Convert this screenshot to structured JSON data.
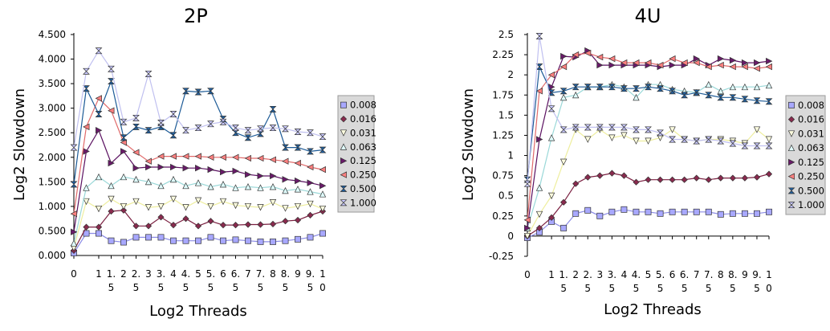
{
  "chart_data": [
    {
      "type": "line",
      "title": "2P",
      "xlabel": "Log2 Threads",
      "ylabel": "Log2 Slowdown",
      "x_ticks": [
        [
          "0"
        ],
        [
          "1"
        ],
        [
          "1.",
          "5"
        ],
        [
          "2"
        ],
        [
          "2.",
          "5"
        ],
        [
          "3"
        ],
        [
          "3.",
          "5"
        ],
        [
          "4"
        ],
        [
          "4.",
          "5"
        ],
        [
          "5"
        ],
        [
          "5.",
          "5"
        ],
        [
          "6"
        ],
        [
          "6.",
          "5"
        ],
        [
          "7"
        ],
        [
          "7.",
          "5"
        ],
        [
          "8"
        ],
        [
          "8.",
          "5"
        ],
        [
          "9"
        ],
        [
          "9.",
          "5"
        ],
        [
          "1",
          "0"
        ]
      ],
      "x": [
        0,
        0.5,
        1,
        1.5,
        2,
        2.5,
        3,
        3.5,
        4,
        4.5,
        5,
        5.5,
        6,
        6.5,
        7,
        7.5,
        8,
        8.5,
        9,
        9.5,
        10
      ],
      "y_ticks": [
        "0.000",
        "0.500",
        "1.000",
        "1.500",
        "2.000",
        "2.500",
        "3.000",
        "3.500",
        "4.000",
        "4.500"
      ],
      "ylim": [
        0,
        4.5
      ],
      "grid": false,
      "legend_position": "right",
      "series": [
        {
          "name": "0.008",
          "values": [
            0.05,
            0.45,
            0.45,
            0.3,
            0.27,
            0.37,
            0.37,
            0.37,
            0.3,
            0.3,
            0.3,
            0.37,
            0.3,
            0.32,
            0.3,
            0.28,
            0.28,
            0.3,
            0.33,
            0.37,
            0.45
          ]
        },
        {
          "name": "0.016",
          "values": [
            0.1,
            0.58,
            0.58,
            0.9,
            0.92,
            0.6,
            0.6,
            0.78,
            0.62,
            0.75,
            0.6,
            0.7,
            0.62,
            0.62,
            0.63,
            0.63,
            0.64,
            0.7,
            0.72,
            0.82,
            0.9
          ]
        },
        {
          "name": "0.031",
          "values": [
            0.15,
            1.1,
            0.95,
            1.15,
            1.0,
            1.1,
            0.98,
            1.0,
            1.15,
            0.98,
            1.12,
            1.0,
            1.1,
            1.02,
            1.0,
            0.98,
            1.08,
            0.96,
            1.0,
            1.05,
            0.95
          ]
        },
        {
          "name": "0.063",
          "values": [
            0.25,
            1.38,
            1.6,
            1.42,
            1.6,
            1.55,
            1.5,
            1.42,
            1.55,
            1.42,
            1.48,
            1.4,
            1.45,
            1.38,
            1.4,
            1.38,
            1.4,
            1.32,
            1.35,
            1.3,
            1.25
          ]
        },
        {
          "name": "0.125",
          "values": [
            0.48,
            2.12,
            2.55,
            1.88,
            2.12,
            1.78,
            1.8,
            1.8,
            1.8,
            1.78,
            1.78,
            1.75,
            1.7,
            1.72,
            1.65,
            1.62,
            1.62,
            1.55,
            1.52,
            1.48,
            1.42
          ]
        },
        {
          "name": "0.250",
          "values": [
            0.85,
            2.62,
            3.2,
            2.95,
            2.3,
            2.1,
            1.92,
            2.02,
            2.02,
            2.02,
            2.02,
            2.0,
            2.0,
            2.0,
            1.98,
            1.98,
            1.95,
            1.92,
            1.88,
            1.8,
            1.75
          ]
        },
        {
          "name": "0.500",
          "values": [
            1.45,
            3.4,
            2.88,
            3.55,
            2.4,
            2.62,
            2.55,
            2.62,
            2.45,
            3.35,
            3.33,
            3.35,
            2.78,
            2.5,
            2.4,
            2.48,
            2.98,
            2.2,
            2.2,
            2.12,
            2.15
          ]
        },
        {
          "name": "1.000",
          "values": [
            2.2,
            3.75,
            4.17,
            3.8,
            2.72,
            2.8,
            3.7,
            2.7,
            2.88,
            2.55,
            2.6,
            2.68,
            2.72,
            2.6,
            2.55,
            2.58,
            2.6,
            2.58,
            2.52,
            2.5,
            2.42
          ]
        }
      ]
    },
    {
      "type": "line",
      "title": "4U",
      "xlabel": "Log2 Threads",
      "ylabel": "Log2 Slowdown",
      "x_ticks": [
        [
          "0"
        ],
        [
          "1"
        ],
        [
          "1.",
          "5"
        ],
        [
          "2"
        ],
        [
          "2.",
          "5"
        ],
        [
          "3"
        ],
        [
          "3.",
          "5"
        ],
        [
          "4"
        ],
        [
          "4.",
          "5"
        ],
        [
          "5"
        ],
        [
          "5.",
          "5"
        ],
        [
          "6"
        ],
        [
          "6.",
          "5"
        ],
        [
          "7"
        ],
        [
          "7.",
          "5"
        ],
        [
          "8"
        ],
        [
          "8.",
          "5"
        ],
        [
          "9"
        ],
        [
          "9.",
          "5"
        ],
        [
          "1",
          "0"
        ]
      ],
      "x": [
        0,
        0.5,
        1,
        1.5,
        2,
        2.5,
        3,
        3.5,
        4,
        4.5,
        5,
        5.5,
        6,
        6.5,
        7,
        7.5,
        8,
        8.5,
        9,
        9.5,
        10
      ],
      "y_ticks": [
        "-0.25",
        "0",
        "0.25",
        "0.5",
        "0.75",
        "1",
        "1.25",
        "1.5",
        "1.75",
        "2",
        "2.25",
        "2.5"
      ],
      "ylim": [
        -0.25,
        2.5
      ],
      "grid": false,
      "legend_position": "right",
      "series": [
        {
          "name": "0.008",
          "values": [
            -0.02,
            0.05,
            0.18,
            0.1,
            0.28,
            0.32,
            0.25,
            0.3,
            0.33,
            0.3,
            0.3,
            0.28,
            0.3,
            0.3,
            0.3,
            0.3,
            0.27,
            0.28,
            0.28,
            0.28,
            0.3
          ]
        },
        {
          "name": "0.016",
          "values": [
            0.0,
            0.1,
            0.23,
            0.42,
            0.65,
            0.73,
            0.75,
            0.78,
            0.75,
            0.67,
            0.7,
            0.7,
            0.7,
            0.7,
            0.72,
            0.7,
            0.72,
            0.72,
            0.72,
            0.73,
            0.77
          ]
        },
        {
          "name": "0.031",
          "values": [
            0.0,
            0.27,
            0.5,
            0.92,
            1.32,
            1.2,
            1.32,
            1.22,
            1.25,
            1.18,
            1.18,
            1.22,
            1.32,
            1.2,
            1.18,
            1.2,
            1.2,
            1.18,
            1.15,
            1.32,
            1.2
          ]
        },
        {
          "name": "0.063",
          "values": [
            0.1,
            0.6,
            1.22,
            1.72,
            1.75,
            1.85,
            1.85,
            1.88,
            1.85,
            1.72,
            1.88,
            1.88,
            1.82,
            1.8,
            1.78,
            1.88,
            1.8,
            1.85,
            1.85,
            1.85,
            1.87
          ]
        },
        {
          "name": "0.125",
          "values": [
            0.1,
            1.2,
            1.85,
            2.23,
            2.22,
            2.3,
            2.12,
            2.12,
            2.12,
            2.12,
            2.12,
            2.1,
            2.12,
            2.12,
            2.2,
            2.12,
            2.2,
            2.18,
            2.15,
            2.15,
            2.17
          ]
        },
        {
          "name": "0.250",
          "values": [
            0.2,
            1.8,
            2.0,
            2.1,
            2.25,
            2.27,
            2.22,
            2.2,
            2.15,
            2.15,
            2.15,
            2.12,
            2.2,
            2.15,
            2.15,
            2.1,
            2.12,
            2.1,
            2.1,
            2.08,
            2.1
          ]
        },
        {
          "name": "0.500",
          "values": [
            0.7,
            2.1,
            1.78,
            1.8,
            1.85,
            1.85,
            1.85,
            1.85,
            1.83,
            1.83,
            1.85,
            1.83,
            1.8,
            1.75,
            1.78,
            1.75,
            1.72,
            1.72,
            1.7,
            1.68,
            1.67
          ]
        },
        {
          "name": "1.000",
          "values": [
            0.65,
            2.48,
            1.58,
            1.32,
            1.35,
            1.35,
            1.35,
            1.35,
            1.35,
            1.32,
            1.32,
            1.28,
            1.2,
            1.2,
            1.18,
            1.2,
            1.18,
            1.15,
            1.12,
            1.12,
            1.12
          ]
        }
      ]
    }
  ],
  "series_styles": [
    {
      "name": "0.008",
      "color": "#a8a8ff",
      "line": "#8c8ce6",
      "marker": "square"
    },
    {
      "name": "0.016",
      "color": "#8a2a4e",
      "line": "#7a1f40",
      "marker": "diamond"
    },
    {
      "name": "0.031",
      "color": "#ffffe0",
      "line": "#eeee9e",
      "marker": "triangle-down"
    },
    {
      "name": "0.063",
      "color": "#e0ffff",
      "line": "#9ad8d8",
      "marker": "triangle-up"
    },
    {
      "name": "0.125",
      "color": "#6a1a6a",
      "line": "#5a1060",
      "marker": "triangle-right"
    },
    {
      "name": "0.250",
      "color": "#ff8080",
      "line": "#e06a6a",
      "marker": "triangle-left"
    },
    {
      "name": "0.500",
      "color": "#1f5f9f",
      "line": "#1c5a96",
      "marker": "bowtie"
    },
    {
      "name": "1.000",
      "color": "#c8c8ff",
      "line": "#c0c0f0",
      "marker": "hourglass"
    }
  ]
}
